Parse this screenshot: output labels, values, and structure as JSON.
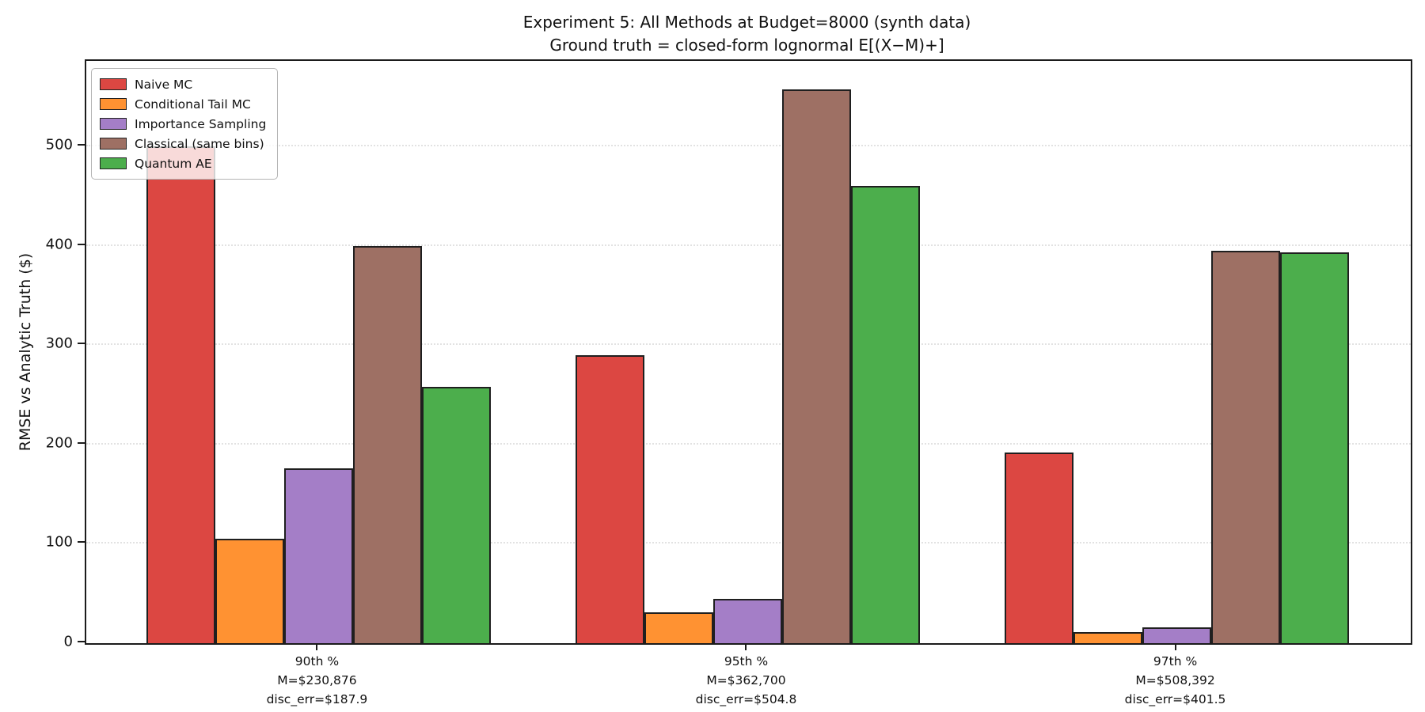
{
  "title": {
    "line1": "Experiment 5: All Methods at Budget=8000 (synth data)",
    "line2": "Ground truth = closed-form lognormal E[(X−M)+]"
  },
  "chart_data": {
    "type": "bar",
    "title": "Experiment 5: All Methods at Budget=8000 (synth data)",
    "subtitle": "Ground truth = closed-form lognormal E[(X−M)+]",
    "ylabel": "RMSE vs Analytic Truth ($)",
    "xlabel": "",
    "ylim": [
      0,
      586
    ],
    "yticks": [
      0,
      100,
      200,
      300,
      400,
      500
    ],
    "grid": "horizontal dotted",
    "legend_position": "upper left",
    "categories": [
      [
        "90th %",
        "M=$230,876",
        "disc_err=$187.9"
      ],
      [
        "95th %",
        "M=$362,700",
        "disc_err=$504.8"
      ],
      [
        "97th %",
        "M=$508,392",
        "disc_err=$401.5"
      ]
    ],
    "series": [
      {
        "name": "Naive MC",
        "color": "#dc4742",
        "values": [
          500,
          290,
          192
        ]
      },
      {
        "name": "Conditional Tail MC",
        "color": "#ff9232",
        "values": [
          105,
          31,
          11
        ]
      },
      {
        "name": "Importance Sampling",
        "color": "#a47ec7",
        "values": [
          176,
          45,
          16
        ]
      },
      {
        "name": "Classical (same bins)",
        "color": "#9e7064",
        "values": [
          400,
          557,
          395
        ]
      },
      {
        "name": "Quantum AE",
        "color": "#4cae4c",
        "values": [
          258,
          460,
          393
        ]
      }
    ],
    "bar_edge_color": "#1f1f1f"
  }
}
